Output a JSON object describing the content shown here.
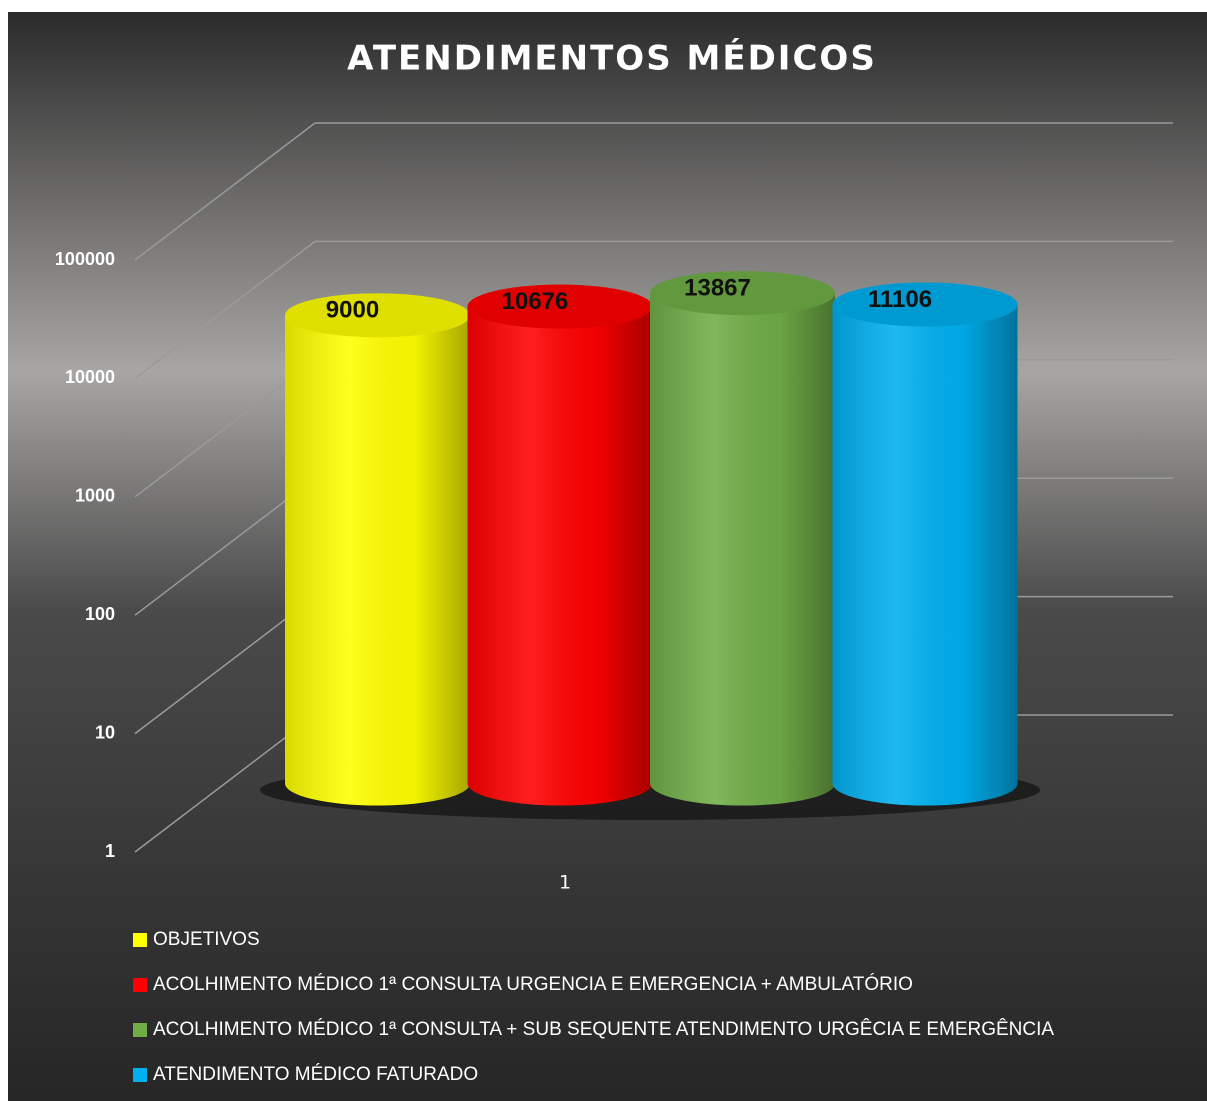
{
  "chart_data": {
    "type": "bar",
    "title": "ATENDIMENTOS MÉDICOS",
    "categories": [
      "1"
    ],
    "series": [
      {
        "name": "OBJETIVOS",
        "color": "#ffff00",
        "values": [
          9000
        ]
      },
      {
        "name": "ACOLHIMENTO MÉDICO 1ª CONSULTA URGENCIA E EMERGENCIA + AMBULATÓRIO",
        "color": "#ff0000",
        "values": [
          10676
        ]
      },
      {
        "name": "ACOLHIMENTO MÉDICO 1ª CONSULTA + SUB SEQUENTE ATENDIMENTO URGÊCIA E EMERGÊNCIA",
        "color": "#70ad47",
        "values": [
          13867
        ]
      },
      {
        "name": "ATENDIMENTO MÉDICO FATURADO",
        "color": "#00b0f0",
        "values": [
          11106
        ]
      }
    ],
    "log_scale": true,
    "ylim": [
      1,
      100000
    ],
    "yticks": [
      1,
      10,
      100,
      1000,
      10000,
      100000
    ],
    "grid": true,
    "legend": "bottom"
  }
}
